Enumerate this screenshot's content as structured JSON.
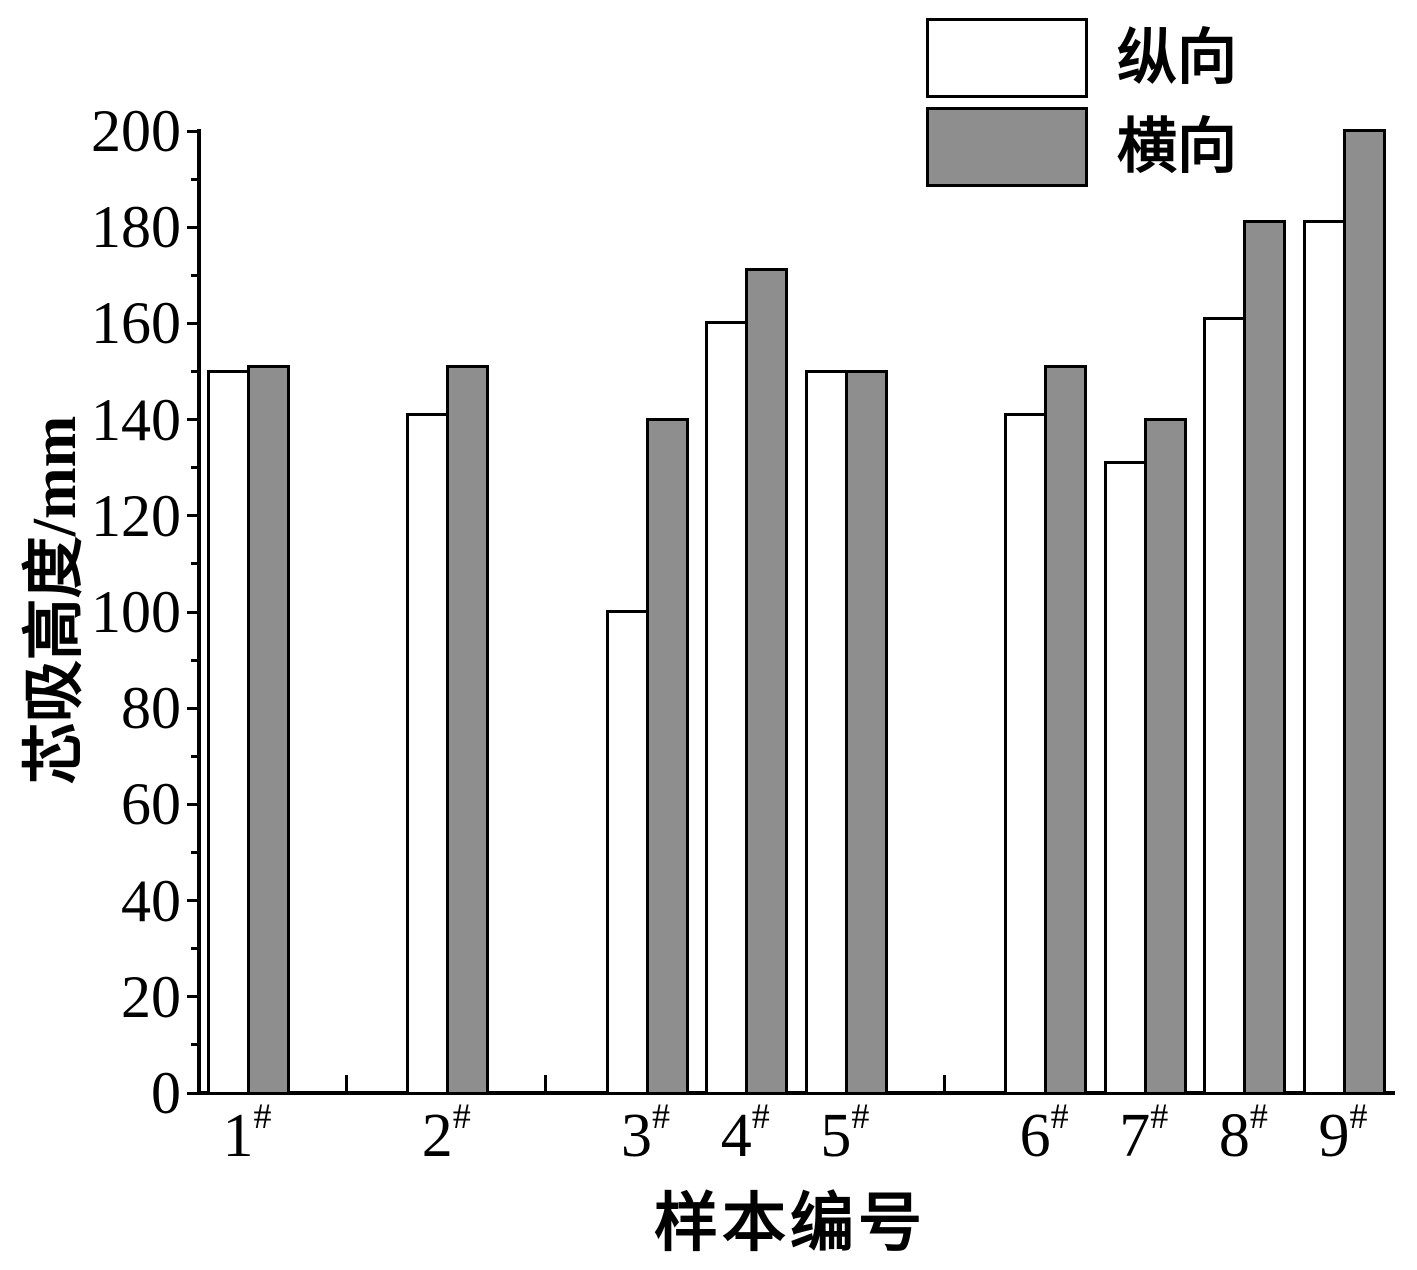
{
  "chart_data": {
    "type": "bar",
    "title": "",
    "xlabel": "样本编号",
    "ylabel": "芯吸高度/mm",
    "categories": [
      "1#",
      "2#",
      "3#",
      "4#",
      "5#",
      "6#",
      "7#",
      "8#",
      "9#"
    ],
    "category_axis_positions": [
      1,
      3,
      5,
      6,
      7,
      9,
      10,
      11,
      12
    ],
    "series": [
      {
        "name": "纵向",
        "fill": "#ffffff",
        "values": [
          150,
          141,
          100,
          160,
          150,
          141,
          131,
          161,
          181
        ]
      },
      {
        "name": "横向",
        "fill": "#8e8e8e",
        "values": [
          151,
          151,
          140,
          171,
          150,
          151,
          140,
          181,
          200
        ]
      }
    ],
    "ylim": [
      0,
      200
    ],
    "y_tick_labels": [
      "0",
      "20",
      "40",
      "60",
      "80",
      "100",
      "120",
      "140",
      "160",
      "180",
      "200"
    ],
    "y_major_step": 20,
    "y_minor_step": 10,
    "x_gap_tick_positions": [
      2,
      4,
      8
    ],
    "legend_position": "top-right-inside",
    "grid": false,
    "outline_color": "#000000"
  }
}
